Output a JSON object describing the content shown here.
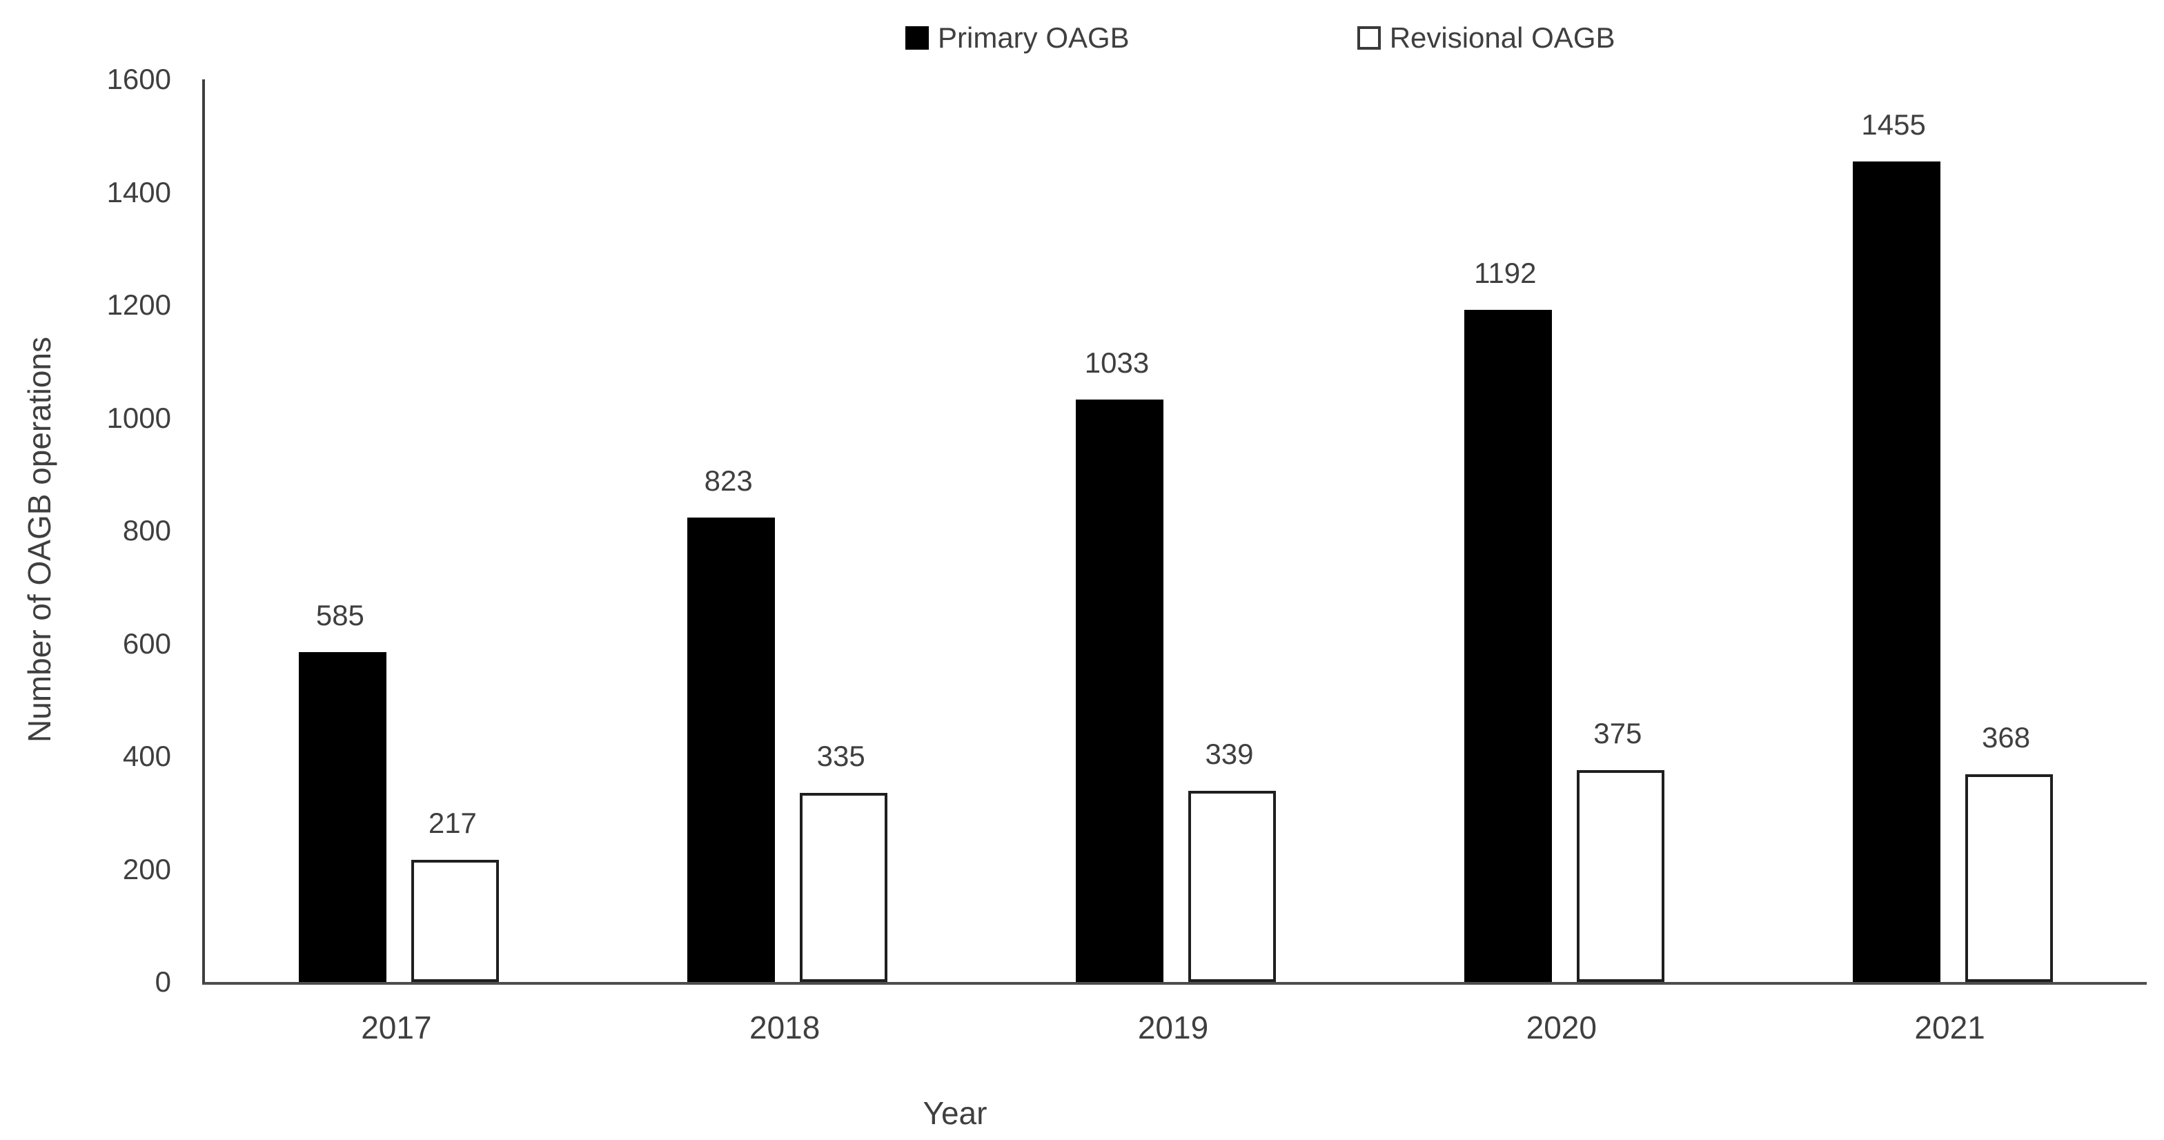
{
  "chart_data": {
    "type": "bar",
    "categories": [
      "2017",
      "2018",
      "2019",
      "2020",
      "2021"
    ],
    "series": [
      {
        "name": "Primary OAGB",
        "values": [
          585,
          823,
          1033,
          1192,
          1455
        ],
        "fill": "#000000",
        "swatch": "filled-black-square"
      },
      {
        "name": "Revisional OAGB",
        "values": [
          217,
          335,
          339,
          375,
          368
        ],
        "fill": "#ffffff",
        "stroke": "#1f1f1f",
        "swatch": "open-white-square"
      }
    ],
    "title": "",
    "xlabel": "Year",
    "ylabel": "Number of OAGB operations",
    "ylim": [
      0,
      1600
    ],
    "yticks": [
      "0",
      "200",
      "400",
      "600",
      "800",
      "1000",
      "1200",
      "1400",
      "1600"
    ],
    "grid": false,
    "legend_position": "top-center",
    "bar_value_labels": true
  },
  "colors": {
    "text": "#3f3f3f",
    "y_axis_line": "#3f3f3f",
    "x_axis_line": "#4d4d4d",
    "primary_bar": "#000000",
    "revisional_bar_fill": "#ffffff",
    "revisional_bar_stroke": "#1f1f1f",
    "background": "#ffffff"
  }
}
